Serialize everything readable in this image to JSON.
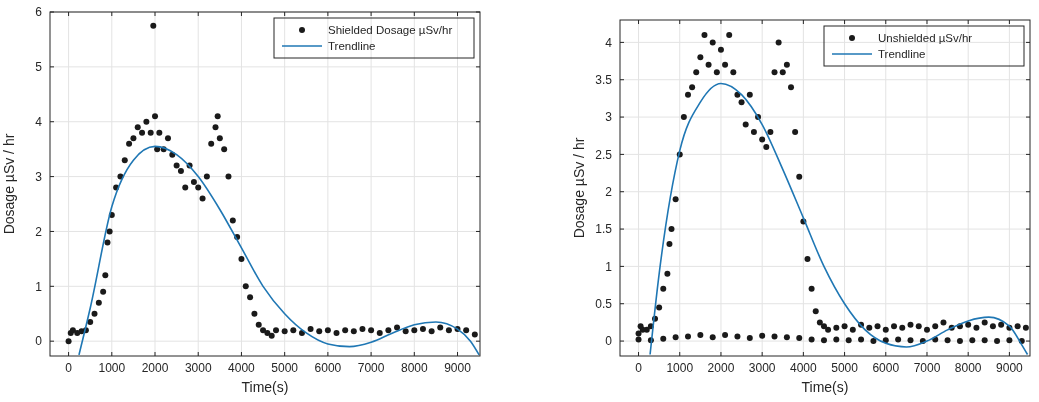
{
  "chart_data": [
    {
      "type": "scatter",
      "xlabel": "Time(s)",
      "ylabel": "Dosage µSv / hr",
      "xlim": [
        -430,
        9520
      ],
      "ylim": [
        -0.27,
        6
      ],
      "xticks": [
        0,
        1000,
        2000,
        3000,
        4000,
        5000,
        6000,
        7000,
        8000,
        9000
      ],
      "yticks": [
        0,
        1,
        2,
        3,
        4,
        5,
        6
      ],
      "grid": true,
      "legend": "top right",
      "series": [
        {
          "name": "Shielded Dosage µSv/hr",
          "marker": "circle",
          "color": "#1a1a1a",
          "x": [
            0,
            50,
            100,
            200,
            300,
            400,
            500,
            600,
            700,
            800,
            850,
            900,
            950,
            1000,
            1100,
            1200,
            1300,
            1400,
            1500,
            1600,
            1700,
            1800,
            1900,
            1960,
            2000,
            2050,
            2100,
            2200,
            2300,
            2400,
            2500,
            2600,
            2700,
            2800,
            2900,
            3000,
            3100,
            3200,
            3300,
            3400,
            3450,
            3500,
            3600,
            3700,
            3800,
            3900,
            4000,
            4100,
            4200,
            4300,
            4400,
            4500,
            4600,
            4700,
            4800,
            5000,
            5200,
            5400,
            5600,
            5800,
            6000,
            6200,
            6400,
            6600,
            6800,
            7000,
            7200,
            7400,
            7600,
            7800,
            8000,
            8200,
            8400,
            8600,
            8800,
            9000,
            9200,
            9400
          ],
          "values": [
            0.0,
            0.15,
            0.2,
            0.15,
            0.18,
            0.2,
            0.35,
            0.5,
            0.7,
            0.9,
            1.2,
            1.8,
            2.0,
            2.3,
            2.8,
            3.0,
            3.3,
            3.6,
            3.7,
            3.9,
            3.8,
            4.0,
            3.8,
            5.75,
            4.1,
            3.5,
            3.8,
            3.5,
            3.7,
            3.4,
            3.2,
            3.1,
            2.8,
            3.2,
            2.9,
            2.8,
            2.6,
            3.0,
            3.6,
            3.9,
            4.1,
            3.7,
            3.5,
            3.0,
            2.2,
            1.9,
            1.5,
            1.0,
            0.8,
            0.5,
            0.3,
            0.2,
            0.15,
            0.1,
            0.2,
            0.18,
            0.2,
            0.15,
            0.22,
            0.18,
            0.2,
            0.15,
            0.2,
            0.18,
            0.22,
            0.2,
            0.15,
            0.2,
            0.25,
            0.18,
            0.2,
            0.22,
            0.18,
            0.25,
            0.2,
            0.22,
            0.2,
            0.12
          ]
        },
        {
          "name": "Trendline",
          "type": "line",
          "marker": "none",
          "color": "#1f77b4",
          "x": [
            240,
            500,
            1000,
            1500,
            2000,
            2500,
            3000,
            3500,
            4000,
            4500,
            5000,
            5500,
            6000,
            6500,
            7000,
            7500,
            8000,
            8500,
            9000,
            9300,
            9500
          ],
          "values": [
            -0.25,
            0.6,
            2.45,
            3.3,
            3.55,
            3.4,
            3.0,
            2.4,
            1.7,
            1.0,
            0.5,
            0.15,
            -0.05,
            -0.1,
            -0.02,
            0.15,
            0.3,
            0.35,
            0.22,
            0.0,
            -0.25
          ]
        }
      ]
    },
    {
      "type": "scatter",
      "xlabel": "Time(s)",
      "ylabel": "Dosage µSv / hr",
      "xlim": [
        -450,
        9500
      ],
      "ylim": [
        -0.2,
        4.3
      ],
      "xticks": [
        0,
        1000,
        2000,
        3000,
        4000,
        5000,
        6000,
        7000,
        8000,
        9000
      ],
      "yticks": [
        0,
        0.5,
        1,
        1.5,
        2,
        2.5,
        3,
        3.5,
        4
      ],
      "grid": true,
      "legend": "top right",
      "series": [
        {
          "name": "Unshielded µSv/hr",
          "marker": "circle",
          "color": "#1a1a1a",
          "x": [
            0,
            50,
            100,
            200,
            300,
            400,
            500,
            600,
            700,
            750,
            800,
            900,
            1000,
            1100,
            1200,
            1300,
            1400,
            1500,
            1600,
            1700,
            1800,
            1900,
            2000,
            2100,
            2200,
            2300,
            2400,
            2500,
            2600,
            2700,
            2800,
            2900,
            3000,
            3100,
            3200,
            3300,
            3400,
            3500,
            3600,
            3700,
            3800,
            3900,
            4000,
            4100,
            4200,
            4300,
            4400,
            4500,
            4600,
            4800,
            5000,
            5200,
            5400,
            5600,
            5800,
            6000,
            6200,
            6400,
            6600,
            6800,
            7000,
            7200,
            7400,
            7600,
            7800,
            8000,
            8200,
            8400,
            8600,
            8800,
            9000,
            9200,
            9400,
            0,
            300,
            600,
            900,
            1200,
            1500,
            1800,
            2100,
            2400,
            2700,
            3000,
            3300,
            3600,
            3900,
            4200,
            4500,
            4800,
            5100,
            5400,
            5700,
            6000,
            6300,
            6600,
            6900,
            7200,
            7500,
            7800,
            8100,
            8400,
            8700,
            9000,
            9300
          ],
          "values": [
            0.1,
            0.2,
            0.15,
            0.15,
            0.2,
            0.3,
            0.45,
            0.7,
            0.9,
            1.3,
            1.5,
            1.9,
            2.5,
            3.0,
            3.3,
            3.4,
            3.6,
            3.8,
            4.1,
            3.7,
            4.0,
            3.6,
            3.9,
            3.7,
            4.1,
            3.6,
            3.3,
            3.2,
            2.9,
            3.3,
            2.8,
            3.0,
            2.7,
            2.6,
            2.8,
            3.6,
            4.0,
            3.6,
            3.7,
            3.4,
            2.8,
            2.2,
            1.6,
            1.1,
            0.7,
            0.4,
            0.25,
            0.2,
            0.15,
            0.18,
            0.2,
            0.15,
            0.22,
            0.18,
            0.2,
            0.15,
            0.2,
            0.18,
            0.22,
            0.2,
            0.15,
            0.2,
            0.25,
            0.18,
            0.2,
            0.22,
            0.18,
            0.25,
            0.2,
            0.22,
            0.18,
            0.2,
            0.18,
            0.02,
            0.01,
            0.03,
            0.05,
            0.06,
            0.08,
            0.05,
            0.08,
            0.06,
            0.04,
            0.07,
            0.06,
            0.05,
            0.04,
            0.02,
            0.01,
            0.02,
            0.01,
            0.02,
            0.0,
            0.01,
            0.02,
            0.01,
            0.0,
            0.02,
            0.01,
            0.0,
            0.01,
            0.01,
            0.0,
            0.01,
            0.0
          ]
        },
        {
          "name": "Trendline",
          "type": "line",
          "marker": "none",
          "color": "#1f77b4",
          "x": [
            280,
            500,
            1000,
            1500,
            2000,
            2500,
            3000,
            3500,
            4000,
            4500,
            5000,
            5500,
            6000,
            6500,
            7000,
            7500,
            8000,
            8500,
            9000,
            9300,
            9440
          ],
          "values": [
            -0.18,
            0.9,
            2.55,
            3.2,
            3.45,
            3.3,
            2.9,
            2.3,
            1.65,
            1.0,
            0.5,
            0.15,
            -0.03,
            -0.08,
            0.0,
            0.15,
            0.27,
            0.32,
            0.2,
            -0.05,
            -0.18
          ]
        }
      ]
    }
  ]
}
